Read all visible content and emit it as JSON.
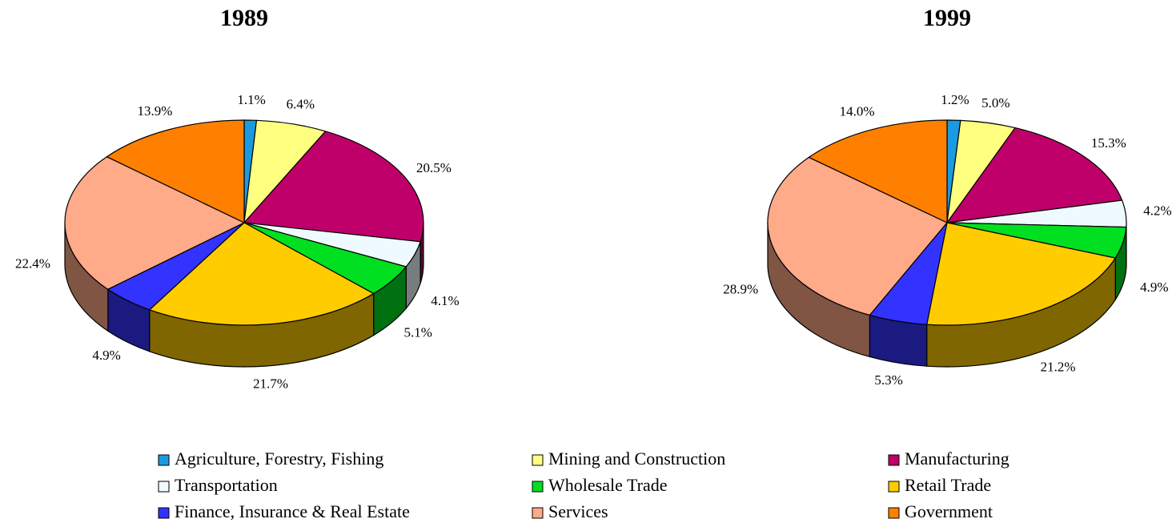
{
  "chart_data": [
    {
      "type": "pie",
      "title": "1989",
      "values": [
        1.1,
        6.4,
        20.5,
        4.1,
        5.1,
        21.7,
        4.9,
        22.4,
        13.9
      ],
      "value_labels": [
        "1.1%",
        "6.4%",
        "20.5%",
        "4.1%",
        "5.1%",
        "21.7%",
        "4.9%",
        "22.4%",
        "13.9%"
      ]
    },
    {
      "type": "pie",
      "title": "1999",
      "values": [
        1.2,
        5.0,
        15.3,
        4.2,
        4.9,
        21.2,
        5.3,
        28.9,
        14.0
      ],
      "value_labels": [
        "1.2%",
        "5.0%",
        "15.3%",
        "4.2%",
        "4.9%",
        "21.2%",
        "5.3%",
        "28.9%",
        "14.0%"
      ]
    }
  ],
  "legend": {
    "categories": [
      "Agriculture, Forestry, Fishing",
      "Mining and Construction",
      "Manufacturing",
      "Transportation",
      "Wholesale Trade",
      "Retail Trade",
      "Finance, Insurance & Real Estate",
      "Services",
      "Government"
    ],
    "colors": [
      "#1a9be0",
      "#ffff80",
      "#c0006a",
      "#eefafe",
      "#00e020",
      "#ffcc00",
      "#3333ff",
      "#ffaa88",
      "#ff8000"
    ]
  }
}
